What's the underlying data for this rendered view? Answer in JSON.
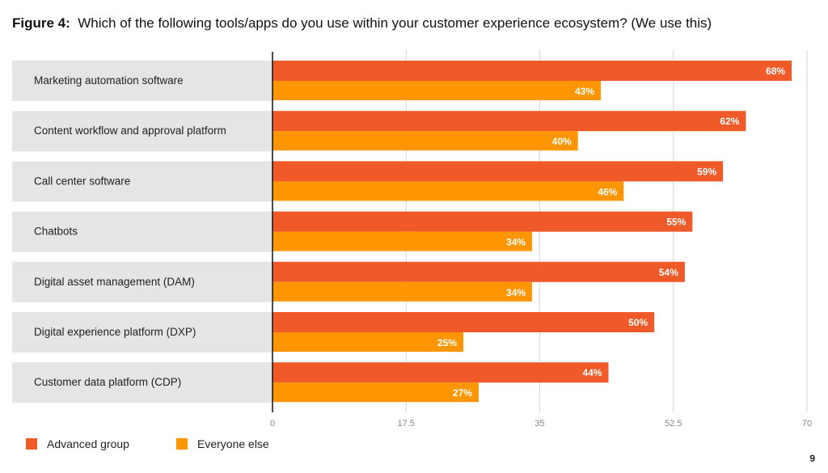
{
  "header": {
    "figure_label": "Figure 4:",
    "question": "Which of the following tools/apps do you use within your customer experience ecosystem? (We use this)"
  },
  "chart_data": {
    "type": "bar",
    "orientation": "horizontal",
    "title": "Which of the following tools/apps do you use within your customer experience ecosystem? (We use this)",
    "categories": [
      "Marketing automation software",
      "Content workflow and approval platform",
      "Call center software",
      "Chatbots",
      "Digital asset management (DAM)",
      "Digital experience platform (DXP)",
      "Customer data platform (CDP)"
    ],
    "series": [
      {
        "name": "Advanced group",
        "color": "#F05A28",
        "values": [
          68,
          62,
          59,
          55,
          54,
          50,
          44
        ]
      },
      {
        "name": "Everyone else",
        "color": "#FF9500",
        "values": [
          43,
          40,
          46,
          34,
          34,
          25,
          27
        ]
      }
    ],
    "xlim": [
      0,
      70
    ],
    "xticks": [
      "0",
      "17.5",
      "35",
      "52.5",
      "70"
    ],
    "grid": true,
    "legend": "bottom-left",
    "value_suffix": "%"
  },
  "footer": {
    "page_number": "9"
  }
}
